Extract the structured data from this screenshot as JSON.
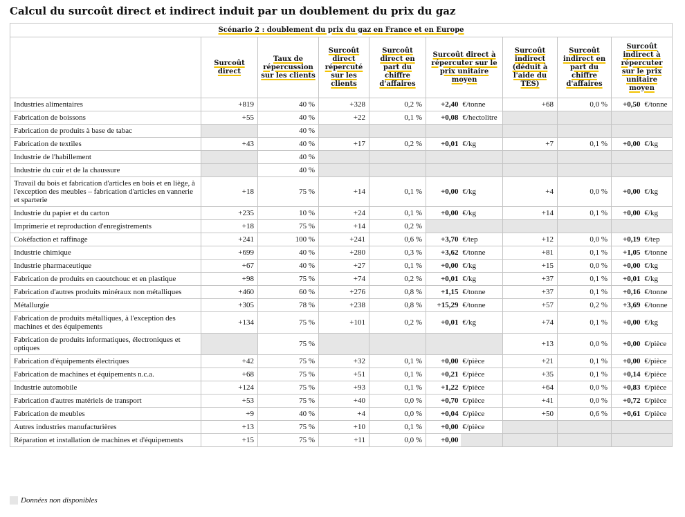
{
  "title": "Calcul du surcoût direct et indirect induit par un doublement du prix du gaz",
  "table": {
    "scenario": "Scénario 2 : doublement du prix du gaz en France et en Europe",
    "columns": [
      "Surcoût direct",
      "Taux de répercussion sur les clients",
      "Surcoût direct répercuté sur les clients",
      "Surcoût direct en part du chiffre d'affaires",
      "Surcoût direct à répercuter sur le prix unitaire moyen",
      "Surcoût indirect (déduit à l'aide du TES)",
      "Surcoût indirect en part du chiffre d'affaires",
      "Surcoût indirect à répercuter sur le prix unitaire moyen"
    ],
    "rows": [
      [
        "Industries alimentaires",
        "+819",
        "40 %",
        "+328",
        "0,2 %",
        "+2,40",
        "€/tonne",
        "+68",
        "0,0 %",
        "+0,50",
        "€/tonne"
      ],
      [
        "Fabrication de boissons",
        "+55",
        "40 %",
        "+22",
        "0,1 %",
        "+0,08",
        "€/hectolitre",
        null,
        null,
        null,
        null
      ],
      [
        "Fabrication de produits à base de tabac",
        null,
        "40 %",
        null,
        null,
        null,
        null,
        null,
        null,
        null,
        null
      ],
      [
        "Fabrication de textiles",
        "+43",
        "40 %",
        "+17",
        "0,2 %",
        "+0,01",
        "€/kg",
        "+7",
        "0,1 %",
        "+0,00",
        "€/kg"
      ],
      [
        "Industrie de l'habillement",
        null,
        "40 %",
        null,
        null,
        null,
        null,
        null,
        null,
        null,
        null
      ],
      [
        "Industrie du cuir et de la chaussure",
        null,
        "40 %",
        null,
        null,
        null,
        null,
        null,
        null,
        null,
        null
      ],
      [
        "Travail du bois et fabrication d'articles en bois et en liège, à l'exception des meubles – fabrication d'articles en vannerie et sparterie",
        "+18",
        "75 %",
        "+14",
        "0,1 %",
        "+0,00",
        "€/kg",
        "+4",
        "0,0 %",
        "+0,00",
        "€/kg"
      ],
      [
        "Industrie du papier et du carton",
        "+235",
        "10 %",
        "+24",
        "0,1 %",
        "+0,00",
        "€/kg",
        "+14",
        "0,1 %",
        "+0,00",
        "€/kg"
      ],
      [
        "Imprimerie et reproduction d'enregistrements",
        "+18",
        "75 %",
        "+14",
        "0,2 %",
        null,
        null,
        null,
        null,
        null,
        null
      ],
      [
        "Cokéfaction et raffinage",
        "+241",
        "100 %",
        "+241",
        "0,6 %",
        "+3,70",
        "€/tep",
        "+12",
        "0,0 %",
        "+0,19",
        "€/tep"
      ],
      [
        "Industrie chimique",
        "+699",
        "40 %",
        "+280",
        "0,3 %",
        "+3,62",
        "€/tonne",
        "+81",
        "0,1 %",
        "+1,05",
        "€/tonne"
      ],
      [
        "Industrie pharmaceutique",
        "+67",
        "40 %",
        "+27",
        "0,1 %",
        "+0,00",
        "€/kg",
        "+15",
        "0,0 %",
        "+0,00",
        "€/kg"
      ],
      [
        "Fabrication de produits en caoutchouc et en plastique",
        "+98",
        "75 %",
        "+74",
        "0,2 %",
        "+0,01",
        "€/kg",
        "+37",
        "0,1 %",
        "+0,01",
        "€/kg"
      ],
      [
        "Fabrication d'autres produits minéraux non métalliques",
        "+460",
        "60 %",
        "+276",
        "0,8 %",
        "+1,15",
        "€/tonne",
        "+37",
        "0,1 %",
        "+0,16",
        "€/tonne"
      ],
      [
        "Métallurgie",
        "+305",
        "78 %",
        "+238",
        "0,8 %",
        "+15,29",
        "€/tonne",
        "+57",
        "0,2 %",
        "+3,69",
        "€/tonne"
      ],
      [
        "Fabrication de produits métalliques, à l'exception des machines et des équipements",
        "+134",
        "75 %",
        "+101",
        "0,2 %",
        "+0,01",
        "€/kg",
        "+74",
        "0,1 %",
        "+0,00",
        "€/kg"
      ],
      [
        "Fabrication de produits informatiques, électroniques et optiques",
        null,
        "75 %",
        null,
        null,
        null,
        null,
        "+13",
        "0,0 %",
        "+0,00",
        "€/pièce"
      ],
      [
        "Fabrication d'équipements électriques",
        "+42",
        "75 %",
        "+32",
        "0,1 %",
        "+0,00",
        "€/pièce",
        "+21",
        "0,1 %",
        "+0,00",
        "€/pièce"
      ],
      [
        "Fabrication de machines et équipements n.c.a.",
        "+68",
        "75 %",
        "+51",
        "0,1 %",
        "+0,21",
        "€/pièce",
        "+35",
        "0,1 %",
        "+0,14",
        "€/pièce"
      ],
      [
        "Industrie automobile",
        "+124",
        "75 %",
        "+93",
        "0,1 %",
        "+1,22",
        "€/pièce",
        "+64",
        "0,0 %",
        "+0,83",
        "€/pièce"
      ],
      [
        "Fabrication d'autres matériels de transport",
        "+53",
        "75 %",
        "+40",
        "0,0 %",
        "+0,70",
        "€/pièce",
        "+41",
        "0,0 %",
        "+0,72",
        "€/pièce"
      ],
      [
        "Fabrication de meubles",
        "+9",
        "40 %",
        "+4",
        "0,0 %",
        "+0,04",
        "€/pièce",
        "+50",
        "0,6 %",
        "+0,61",
        "€/pièce"
      ],
      [
        "Autres industries manufacturières",
        "+13",
        "75 %",
        "+10",
        "0,1 %",
        "+0,00",
        "€/pièce",
        null,
        null,
        null,
        null
      ],
      [
        "Réparation et installation de machines et d'équipements",
        "+15",
        "75 %",
        "+11",
        "0,0 %",
        "+0,00",
        null,
        null,
        null,
        null,
        null
      ]
    ]
  },
  "legend": "Données non disponibles"
}
